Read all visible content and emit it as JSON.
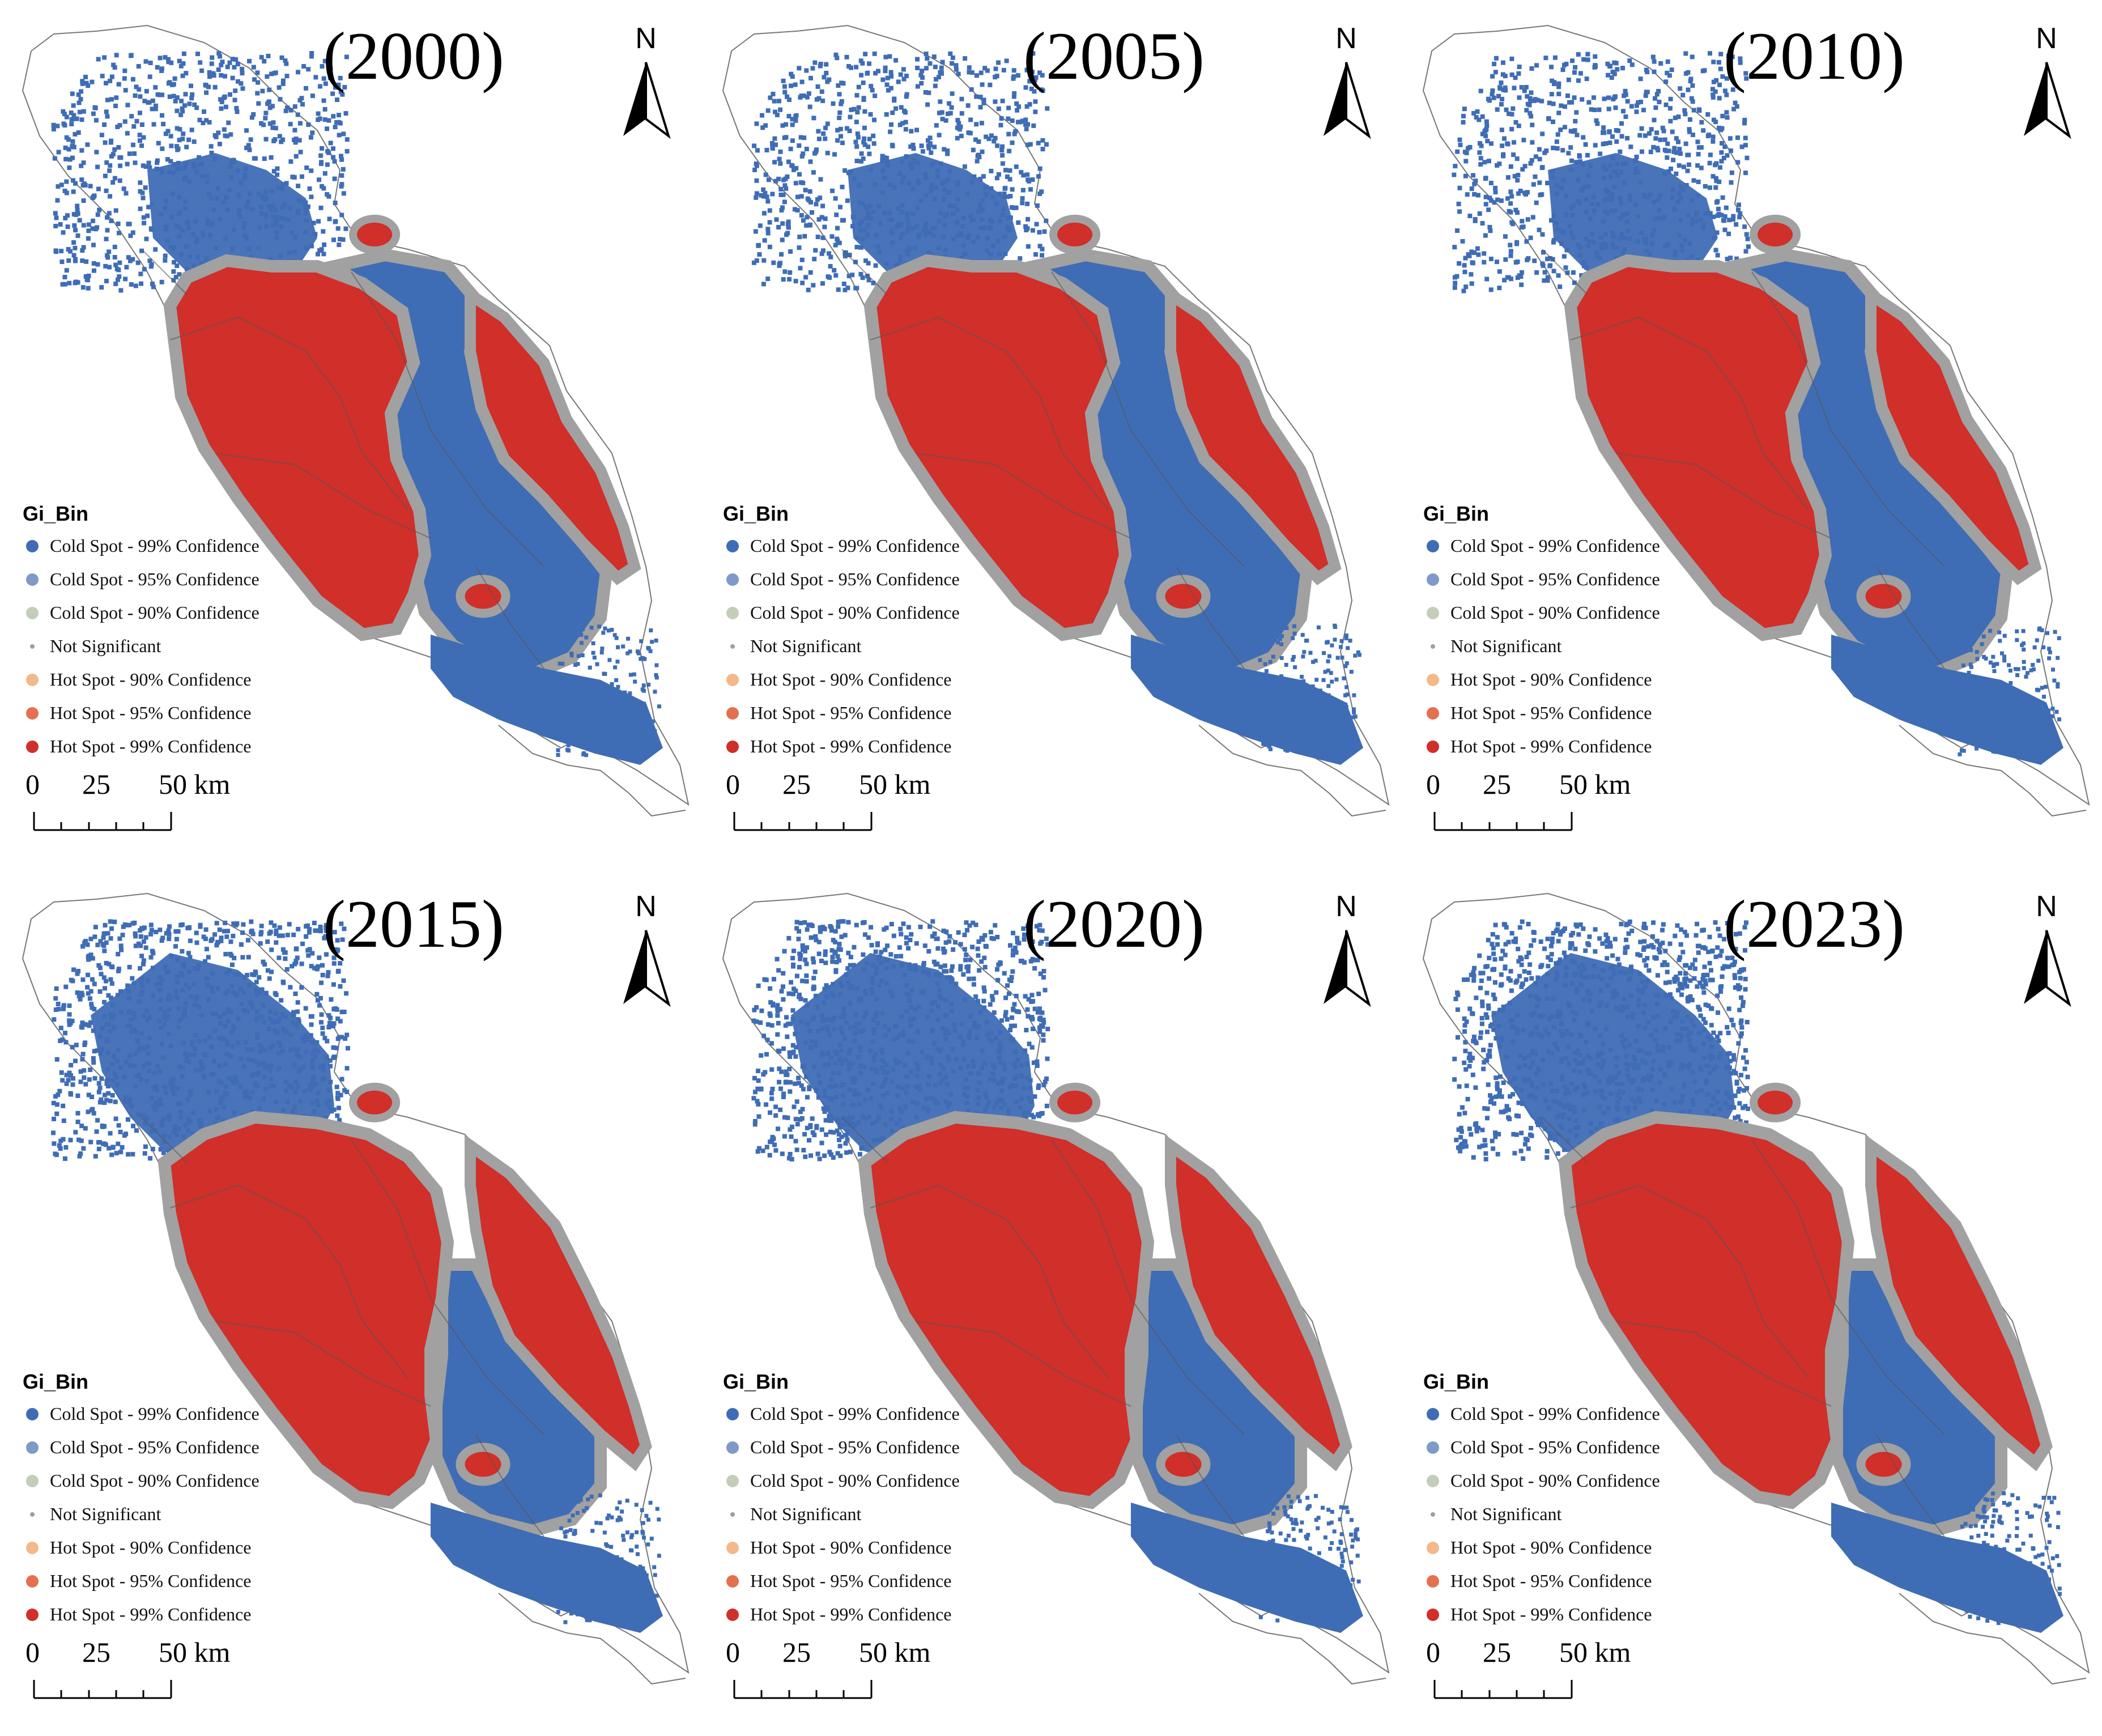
{
  "legend": {
    "title": "Gi_Bin",
    "items": [
      {
        "label": "Cold Spot - 99% Confidence",
        "color": "#3f6db5",
        "size": "large"
      },
      {
        "label": "Cold Spot - 95% Confidence",
        "color": "#7e9ac6",
        "size": "large"
      },
      {
        "label": "Cold Spot - 90% Confidence",
        "color": "#c4cdb9",
        "size": "large"
      },
      {
        "label": "Not Significant",
        "color": "#9e9e9e",
        "size": "small"
      },
      {
        "label": "Hot Spot - 90% Confidence",
        "color": "#f3b98a",
        "size": "large"
      },
      {
        "label": "Hot Spot - 95% Confidence",
        "color": "#e5704f",
        "size": "large"
      },
      {
        "label": "Hot Spot - 99% Confidence",
        "color": "#d02f2a",
        "size": "large"
      }
    ]
  },
  "scale": {
    "labels": [
      "0",
      "25",
      "50 km"
    ]
  },
  "north_label": "N",
  "colors": {
    "cold99": "#3f6db5",
    "hot99": "#d02f2a",
    "not_significant": "#a1a1a1",
    "boundary": "#555555",
    "background": "#ffffff"
  },
  "panels": [
    {
      "year": "(2000)",
      "pattern": "early"
    },
    {
      "year": "(2005)",
      "pattern": "early"
    },
    {
      "year": "(2010)",
      "pattern": "early"
    },
    {
      "year": "(2015)",
      "pattern": "late"
    },
    {
      "year": "(2020)",
      "pattern": "late"
    },
    {
      "year": "(2023)",
      "pattern": "late"
    }
  ]
}
